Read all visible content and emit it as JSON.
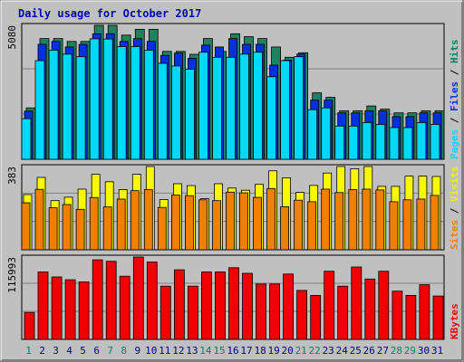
{
  "chart_data": [
    {
      "type": "bar",
      "title": "Daily usage for October 2017",
      "categories": [
        "1",
        "2",
        "3",
        "4",
        "5",
        "6",
        "7",
        "8",
        "9",
        "10",
        "11",
        "12",
        "13",
        "14",
        "15",
        "16",
        "17",
        "18",
        "19",
        "20",
        "21",
        "22",
        "23",
        "24",
        "25",
        "26",
        "27",
        "28",
        "29",
        "30",
        "31"
      ],
      "weekend_days": [
        "1",
        "7",
        "8",
        "14",
        "15",
        "21",
        "22",
        "28",
        "29"
      ],
      "y_max_label": "5080",
      "ylim": [
        0,
        5080
      ],
      "ylabel_parts": [
        {
          "text": "Pages",
          "color": "#00d8f8"
        },
        {
          "text": " / ",
          "color": "#000000"
        },
        {
          "text": "Files",
          "color": "#0030e0"
        },
        {
          "text": " / ",
          "color": "#000000"
        },
        {
          "text": "Hits",
          "color": "#008060"
        }
      ],
      "series": [
        {
          "name": "Hits",
          "color": "#208060",
          "values": [
            1950,
            4580,
            4580,
            4470,
            4470,
            5080,
            5080,
            4710,
            4930,
            4930,
            4090,
            4090,
            3980,
            4580,
            4090,
            4760,
            4650,
            4580,
            4260,
            3870,
            4040,
            2520,
            2350,
            1840,
            1840,
            2020,
            1900,
            1760,
            1760,
            1840,
            1840
          ]
        },
        {
          "name": "Files",
          "color": "#0030e0",
          "values": [
            1830,
            4360,
            4470,
            4260,
            4360,
            4760,
            4760,
            4470,
            4580,
            4470,
            3940,
            4030,
            3830,
            4330,
            4260,
            4580,
            4360,
            4360,
            3570,
            3760,
            3990,
            2240,
            2240,
            1760,
            1760,
            1840,
            1840,
            1620,
            1620,
            1760,
            1760
          ]
        },
        {
          "name": "Pages",
          "color": "#00d8f8",
          "values": [
            1540,
            3740,
            4140,
            3990,
            3890,
            4570,
            4560,
            4270,
            4270,
            4140,
            3640,
            3540,
            3420,
            4060,
            3870,
            3870,
            3990,
            4060,
            3130,
            3740,
            3890,
            1880,
            1950,
            1260,
            1260,
            1390,
            1320,
            1200,
            1200,
            1390,
            1320
          ]
        }
      ]
    },
    {
      "type": "bar",
      "y_max_label": "383",
      "ylim": [
        0,
        383
      ],
      "ylabel_parts": [
        {
          "text": "Sites",
          "color": "#f08000"
        },
        {
          "text": " / ",
          "color": "#000000"
        },
        {
          "text": "Visits",
          "color": "#f0f000"
        }
      ],
      "series": [
        {
          "name": "Visits",
          "color": "#f8f800",
          "values": [
            254,
            333,
            226,
            242,
            279,
            347,
            313,
            277,
            347,
            383,
            231,
            304,
            295,
            235,
            304,
            284,
            274,
            301,
            363,
            331,
            264,
            296,
            353,
            383,
            373,
            383,
            292,
            292,
            339,
            339,
            337
          ]
        },
        {
          "name": "Sites",
          "color": "#f08000",
          "values": [
            216,
            278,
            193,
            208,
            186,
            240,
            197,
            233,
            272,
            277,
            195,
            252,
            249,
            230,
            226,
            265,
            262,
            241,
            282,
            198,
            228,
            221,
            279,
            263,
            277,
            279,
            275,
            221,
            230,
            233,
            250
          ]
        }
      ]
    },
    {
      "type": "bar",
      "y_max_label": "115993",
      "ylim": [
        0,
        115993
      ],
      "ylabel_parts": [
        {
          "text": "KBytes",
          "color": "#f00000"
        }
      ],
      "series": [
        {
          "name": "KBytes",
          "color": "#f00000",
          "values": [
            38000,
            95000,
            88000,
            84000,
            81000,
            112000,
            110000,
            89000,
            115993,
            109000,
            75000,
            98000,
            75000,
            95000,
            95000,
            101000,
            93000,
            78000,
            78000,
            92000,
            69000,
            62000,
            96000,
            75000,
            102000,
            85000,
            96000,
            68000,
            62000,
            77000,
            61000
          ]
        }
      ]
    }
  ]
}
